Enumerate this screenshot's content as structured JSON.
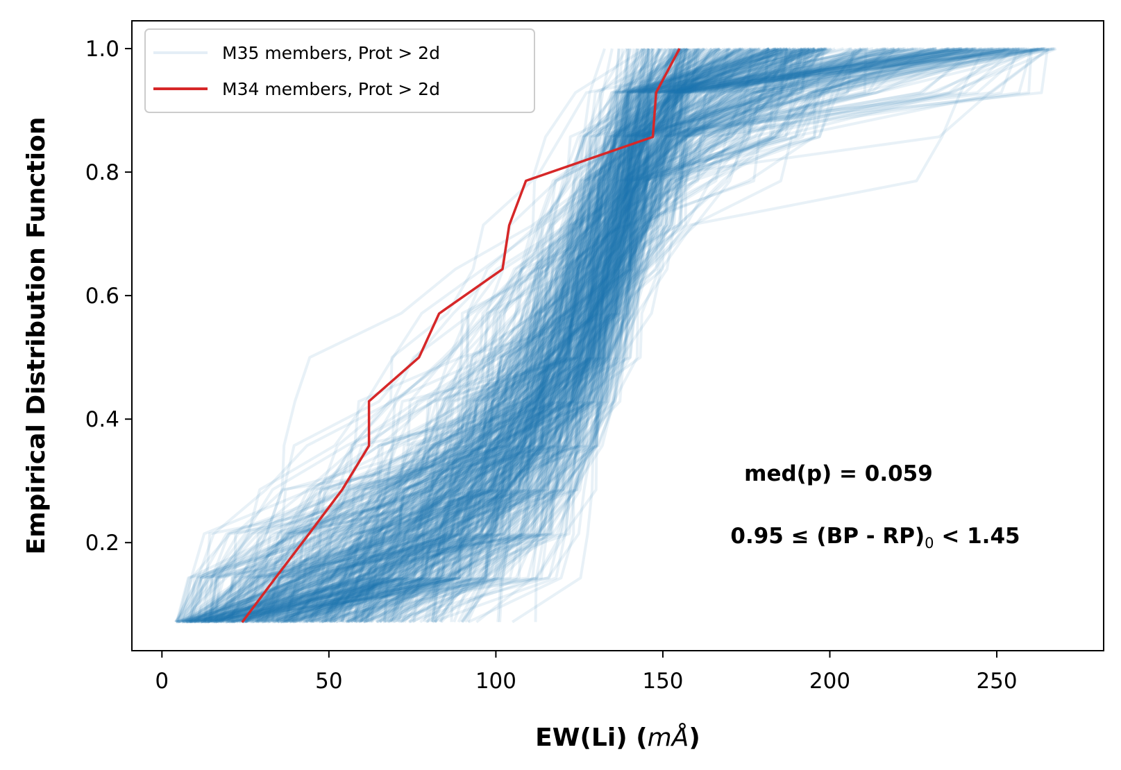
{
  "chart_data": {
    "type": "line",
    "title": "",
    "xlabel": "EW(Li) (mÅ)",
    "xlabel_main": "EW(Li) (",
    "xlabel_unit": "mÅ",
    "xlabel_close": ")",
    "ylabel": "Empirical Distribution Function",
    "xlim": [
      -9,
      282
    ],
    "ylim": [
      0.025,
      1.045
    ],
    "xticks": [
      0,
      50,
      100,
      150,
      200,
      250
    ],
    "yticks": [
      0.2,
      0.4,
      0.6,
      0.8,
      1.0
    ],
    "xtick_labels": [
      "0",
      "50",
      "100",
      "150",
      "200",
      "250"
    ],
    "ytick_labels": [
      "0.2",
      "0.4",
      "0.6",
      "0.8",
      "1.0"
    ],
    "grid": false,
    "legend": {
      "location": "upper-left",
      "entries": [
        {
          "label": "M35 members, Prot > 2d",
          "color": "#1f77b4",
          "alpha": 0.1
        },
        {
          "label": "M34 members, Prot > 2d",
          "color": "#d62728",
          "alpha": 1.0
        }
      ]
    },
    "series": [
      {
        "name": "M34 members, Prot > 2d",
        "color": "#d62728",
        "x": [
          24,
          34,
          44,
          54,
          62,
          62,
          77,
          83,
          102,
          104,
          109,
          147,
          148,
          155
        ],
        "y": [
          0.071,
          0.143,
          0.214,
          0.286,
          0.357,
          0.429,
          0.5,
          0.571,
          0.643,
          0.714,
          0.786,
          0.857,
          0.929,
          1.0
        ]
      },
      {
        "name": "M35 members, Prot > 2d",
        "color": "#1f77b4",
        "alpha": 0.1,
        "n_samples": 500,
        "n_points_per_sample": 14,
        "ew_quantiles_x": [
          4,
          16,
          33,
          55,
          78,
          95,
          110,
          120,
          128,
          135,
          140,
          146,
          158,
          200,
          268
        ],
        "ew_quantiles_p": [
          0.0,
          0.02,
          0.05,
          0.1,
          0.18,
          0.26,
          0.36,
          0.46,
          0.56,
          0.66,
          0.74,
          0.82,
          0.9,
          0.97,
          1.0
        ]
      }
    ],
    "annotations": [
      {
        "text": "med(p) = 0.059"
      },
      {
        "text_left": "0.95 ≤ (BP - RP)",
        "subscript": "0",
        "text_right": " < 1.45"
      }
    ]
  }
}
